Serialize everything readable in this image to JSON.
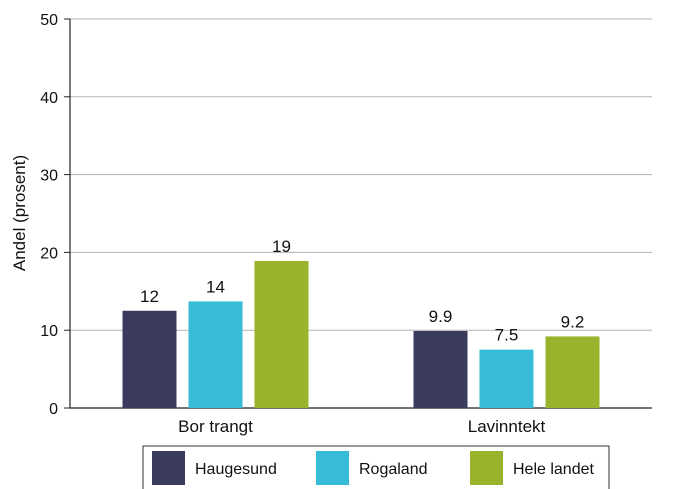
{
  "chart_data": {
    "type": "bar",
    "categories": [
      "Bor trangt",
      "Lavinntekt"
    ],
    "series": [
      {
        "name": "Haugesund",
        "values": [
          12.5,
          9.9
        ],
        "labels": [
          "12",
          "9.9"
        ],
        "color": "#3a3b5e"
      },
      {
        "name": "Rogaland",
        "values": [
          13.7,
          7.5
        ],
        "labels": [
          "14",
          "7.5"
        ],
        "color": "#36bcd6"
      },
      {
        "name": "Hele landet",
        "values": [
          18.9,
          9.2
        ],
        "labels": [
          "19",
          "9.2"
        ],
        "color": "#9ab32c"
      }
    ],
    "title": "",
    "xlabel": "",
    "ylabel": "Andel (prosent)",
    "ylim": [
      0,
      50
    ],
    "yticks": [
      "0",
      "10",
      "20",
      "30",
      "40",
      "50"
    ],
    "grid": true,
    "legend_position": "bottom"
  }
}
